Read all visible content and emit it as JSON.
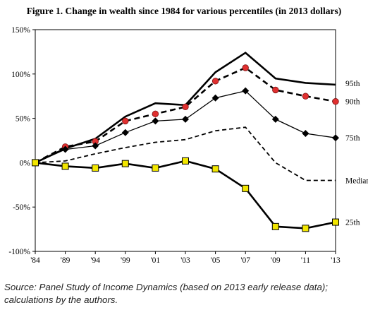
{
  "title": "Figure 1. Change in wealth since 1984 for various percentiles (in 2013 dollars)",
  "source_lines": [
    "Source: Panel Study of Income Dynamics (based on 2013 early release data);",
    "calculations by the authors."
  ],
  "chart_data": {
    "type": "line",
    "title": "Figure 1. Change in wealth since 1984 for various percentiles (in 2013 dollars)",
    "xlabel": "",
    "ylabel": "",
    "categories": [
      "'84",
      "'89",
      "'94",
      "'99",
      "'01",
      "'03",
      "'05",
      "'07",
      "'09",
      "'11",
      "'13"
    ],
    "ylim": [
      -100,
      150
    ],
    "yticks": [
      -100,
      -50,
      0,
      50,
      100,
      150
    ],
    "ytick_labels": [
      "-100%",
      "-50%",
      "0%",
      "50%",
      "100%",
      "150%"
    ],
    "grid": false,
    "series": [
      {
        "name": "95th",
        "style": "solid-thick",
        "marker": "none",
        "color": "#000000",
        "values": [
          0,
          16,
          27,
          52,
          67,
          65,
          102,
          124,
          95,
          90,
          88
        ]
      },
      {
        "name": "90th",
        "style": "dashed-thick",
        "marker": "circle",
        "color": "#000000",
        "marker_color": "#e03030",
        "values": [
          0,
          18,
          24,
          47,
          55,
          63,
          92,
          107,
          82,
          75,
          69
        ]
      },
      {
        "name": "75th",
        "style": "solid-thin",
        "marker": "diamond",
        "color": "#000000",
        "marker_color": "#000000",
        "values": [
          0,
          15,
          19,
          34,
          47,
          49,
          73,
          81,
          49,
          33,
          28
        ]
      },
      {
        "name": "Median",
        "style": "dashed-thin",
        "marker": "none",
        "color": "#000000",
        "values": [
          0,
          2,
          10,
          17,
          23,
          26,
          36,
          40,
          0,
          -20,
          -20
        ]
      },
      {
        "name": "25th",
        "style": "solid-thick",
        "marker": "square",
        "color": "#000000",
        "marker_color": "#f2e600",
        "values": [
          0,
          -4,
          -6,
          -1,
          -6,
          2,
          -7,
          -29,
          -72,
          -74,
          -67
        ]
      }
    ]
  }
}
